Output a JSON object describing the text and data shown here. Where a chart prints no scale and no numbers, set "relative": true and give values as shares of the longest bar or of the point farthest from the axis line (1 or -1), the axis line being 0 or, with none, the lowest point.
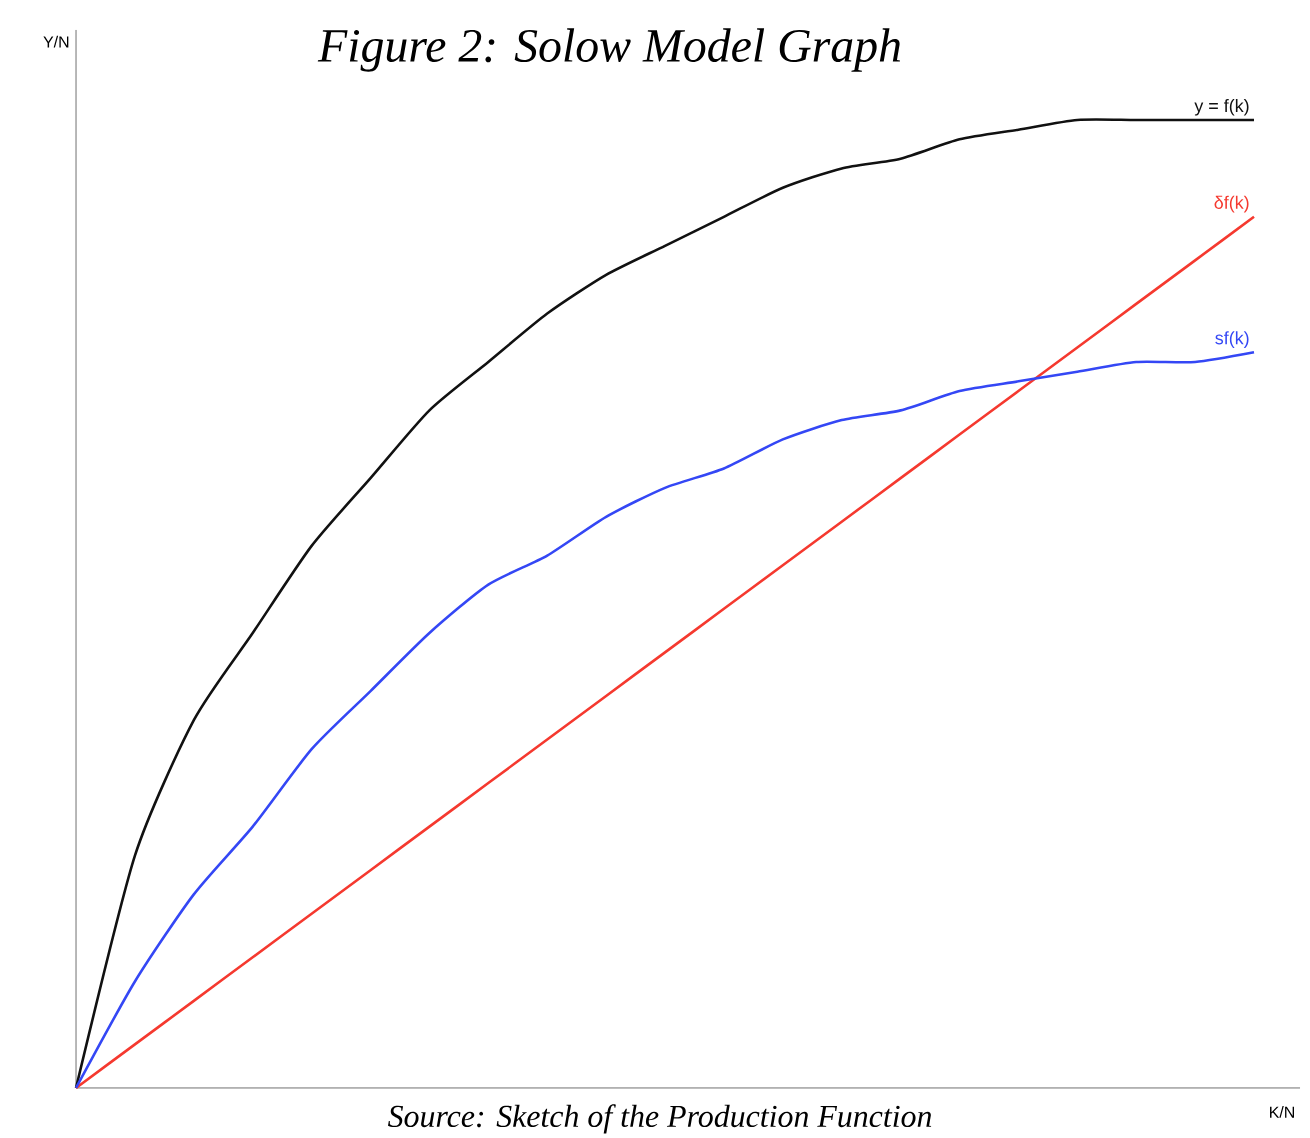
{
  "chart_data": {
    "type": "line",
    "title": "Figure 2: Solow Model Graph",
    "xlabel": "K/N",
    "ylabel": "Y/N",
    "relative": true,
    "categories": [
      null,
      null,
      null,
      null,
      null,
      null,
      null,
      null,
      null,
      null,
      null,
      null,
      null,
      null,
      null,
      null,
      null,
      null,
      null,
      null,
      null
    ],
    "series": [
      {
        "name": "y = f(k)",
        "color": "#111111",
        "values": [
          0,
          0.24,
          0.38,
          0.47,
          0.56,
          0.63,
          0.7,
          0.75,
          0.8,
          0.84,
          0.87,
          0.9,
          0.93,
          0.95,
          0.96,
          0.98,
          0.99,
          1.0,
          1.0,
          1.0,
          1.0
        ]
      },
      {
        "name": "δf(k)",
        "color": "#f5392f",
        "values": [
          0,
          0.045,
          0.09,
          0.135,
          0.18,
          0.225,
          0.27,
          0.315,
          0.36,
          0.405,
          0.45,
          0.495,
          0.54,
          0.585,
          0.63,
          0.675,
          0.72,
          0.765,
          0.81,
          0.855,
          0.9
        ]
      },
      {
        "name": "sf(k)",
        "color": "#3447f5",
        "values": [
          0,
          0.11,
          0.2,
          0.27,
          0.35,
          0.41,
          0.47,
          0.52,
          0.55,
          0.59,
          0.62,
          0.64,
          0.67,
          0.69,
          0.7,
          0.72,
          0.73,
          0.74,
          0.75,
          0.75,
          0.76
        ]
      }
    ],
    "annotations": [
      "Source: Sketch of the Production Function"
    ]
  }
}
